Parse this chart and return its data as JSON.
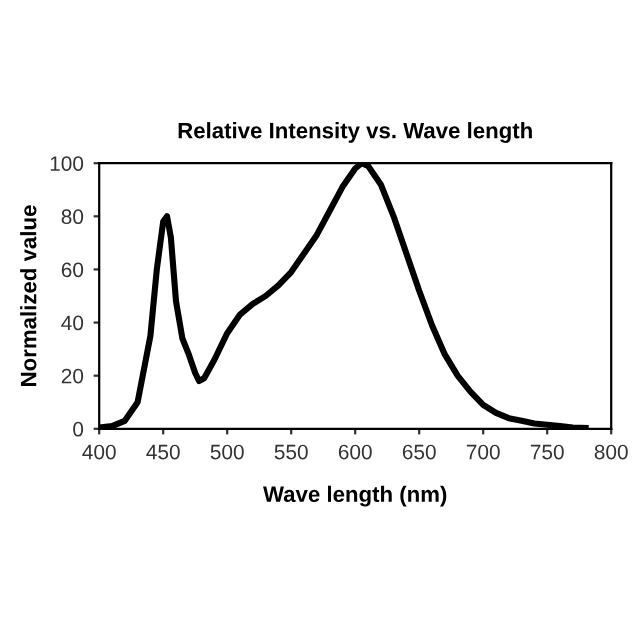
{
  "chart_data": {
    "type": "line",
    "title": "Relative Intensity vs. Wave length",
    "xlabel": "Wave length (nm)",
    "ylabel": "Normalized value",
    "xlim": [
      400,
      800
    ],
    "xticks": [
      400,
      450,
      500,
      550,
      600,
      650,
      700,
      750,
      800
    ],
    "ylim": [
      0,
      100
    ],
    "yticks": [
      0,
      20,
      40,
      60,
      80,
      100
    ],
    "grid": false,
    "legend": false,
    "marker": "none",
    "line_style": "solid",
    "series": [
      {
        "color": "#000000",
        "x": [
          400,
          410,
          420,
          430,
          440,
          445,
          450,
          453,
          456,
          460,
          465,
          470,
          475,
          478,
          482,
          490,
          500,
          510,
          520,
          530,
          540,
          550,
          560,
          570,
          580,
          590,
          600,
          605,
          610,
          620,
          630,
          640,
          650,
          660,
          670,
          680,
          690,
          700,
          710,
          720,
          730,
          740,
          750,
          760,
          770,
          780
        ],
        "values": [
          0.5,
          1,
          3,
          10,
          35,
          60,
          78,
          80,
          72,
          48,
          34,
          28,
          21,
          18,
          19,
          26,
          36,
          43,
          47,
          50,
          54,
          59,
          66,
          73,
          82,
          91,
          98,
          100,
          99,
          92,
          80,
          66,
          52,
          39,
          28,
          20,
          14,
          9,
          6,
          4,
          3,
          2,
          1.5,
          1,
          0.5,
          0.3
        ]
      }
    ]
  }
}
